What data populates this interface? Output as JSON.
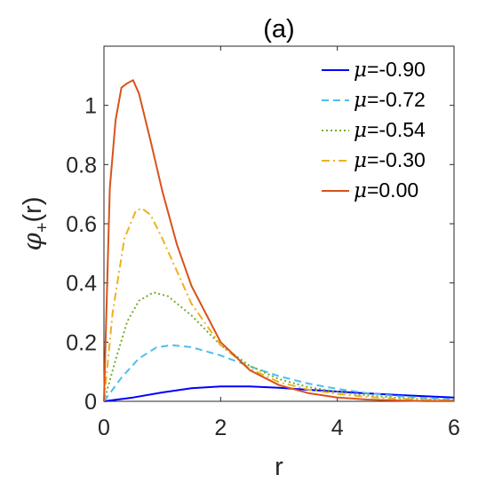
{
  "chart_data": {
    "type": "line",
    "title": "(a)",
    "xlabel": "r",
    "ylabel_main": "φ",
    "ylabel_sub": "+",
    "ylabel_tail": "(r)",
    "xlim": [
      0,
      6
    ],
    "ylim": [
      0,
      1.2
    ],
    "xticks": [
      0,
      2,
      4,
      6
    ],
    "yticks": [
      0,
      0.2,
      0.4,
      0.6,
      0.8,
      1
    ],
    "ytick_labels": [
      "0",
      "0.2",
      "0.4",
      "0.6",
      "0.8",
      "1"
    ],
    "grid": false,
    "legend_position": "top-right",
    "series": [
      {
        "name": "μ=-0.90",
        "legend_symbol": "μ",
        "legend_value": "=-0.90",
        "color": "#0000ff",
        "style": "solid",
        "points": [
          [
            0,
            0
          ],
          [
            0.5,
            0.013
          ],
          [
            1,
            0.03
          ],
          [
            1.5,
            0.044
          ],
          [
            2,
            0.05
          ],
          [
            2.5,
            0.05
          ],
          [
            3,
            0.046
          ],
          [
            3.5,
            0.039
          ],
          [
            4,
            0.033
          ],
          [
            4.5,
            0.027
          ],
          [
            5,
            0.022
          ],
          [
            5.5,
            0.017
          ],
          [
            6,
            0.013
          ]
        ]
      },
      {
        "name": "μ=-0.72",
        "legend_symbol": "μ",
        "legend_value": "=-0.72",
        "color": "#4dbeee",
        "style": "dashed",
        "points": [
          [
            0,
            0
          ],
          [
            0.3,
            0.08
          ],
          [
            0.6,
            0.145
          ],
          [
            0.9,
            0.182
          ],
          [
            1.15,
            0.19
          ],
          [
            1.5,
            0.183
          ],
          [
            2,
            0.155
          ],
          [
            2.5,
            0.118
          ],
          [
            3,
            0.085
          ],
          [
            3.5,
            0.06
          ],
          [
            4,
            0.042
          ],
          [
            4.5,
            0.028
          ],
          [
            5,
            0.018
          ],
          [
            5.5,
            0.011
          ],
          [
            6,
            0.006
          ]
        ]
      },
      {
        "name": "μ=-0.54",
        "legend_symbol": "μ",
        "legend_value": "=-0.54",
        "color": "#77ac30",
        "style": "dotted",
        "points": [
          [
            0,
            0
          ],
          [
            0.2,
            0.14
          ],
          [
            0.4,
            0.27
          ],
          [
            0.6,
            0.34
          ],
          [
            0.85,
            0.368
          ],
          [
            1.1,
            0.355
          ],
          [
            1.5,
            0.29
          ],
          [
            2,
            0.19
          ],
          [
            2.5,
            0.12
          ],
          [
            3,
            0.075
          ],
          [
            3.5,
            0.048
          ],
          [
            4,
            0.032
          ],
          [
            4.5,
            0.02
          ],
          [
            5,
            0.012
          ],
          [
            5.5,
            0.007
          ],
          [
            6,
            0.004
          ]
        ]
      },
      {
        "name": "μ=-0.30",
        "legend_symbol": "μ",
        "legend_value": "=-0.30",
        "color": "#edb120",
        "style": "dashdot",
        "points": [
          [
            0,
            0
          ],
          [
            0.15,
            0.3
          ],
          [
            0.35,
            0.55
          ],
          [
            0.55,
            0.645
          ],
          [
            0.65,
            0.652
          ],
          [
            0.8,
            0.63
          ],
          [
            1,
            0.55
          ],
          [
            1.5,
            0.33
          ],
          [
            2,
            0.19
          ],
          [
            2.5,
            0.11
          ],
          [
            3,
            0.065
          ],
          [
            3.5,
            0.04
          ],
          [
            4,
            0.025
          ],
          [
            4.5,
            0.015
          ],
          [
            5,
            0.009
          ],
          [
            5.5,
            0.005
          ],
          [
            6,
            0.003
          ]
        ]
      },
      {
        "name": "μ=0.00",
        "legend_symbol": "μ",
        "legend_value": "=0.00",
        "color": "#d95319",
        "style": "solid",
        "points": [
          [
            0,
            0
          ],
          [
            0.1,
            0.72
          ],
          [
            0.2,
            0.95
          ],
          [
            0.3,
            1.06
          ],
          [
            0.4,
            1.075
          ],
          [
            0.5,
            1.085
          ],
          [
            0.6,
            1.04
          ],
          [
            0.8,
            0.88
          ],
          [
            1,
            0.71
          ],
          [
            1.25,
            0.53
          ],
          [
            1.5,
            0.39
          ],
          [
            2,
            0.2
          ],
          [
            2.5,
            0.105
          ],
          [
            3,
            0.055
          ],
          [
            3.5,
            0.028
          ],
          [
            4,
            0.013
          ],
          [
            4.5,
            0.006
          ],
          [
            5,
            0.003
          ],
          [
            5.5,
            0.001
          ],
          [
            6,
            0.0005
          ]
        ]
      }
    ]
  }
}
